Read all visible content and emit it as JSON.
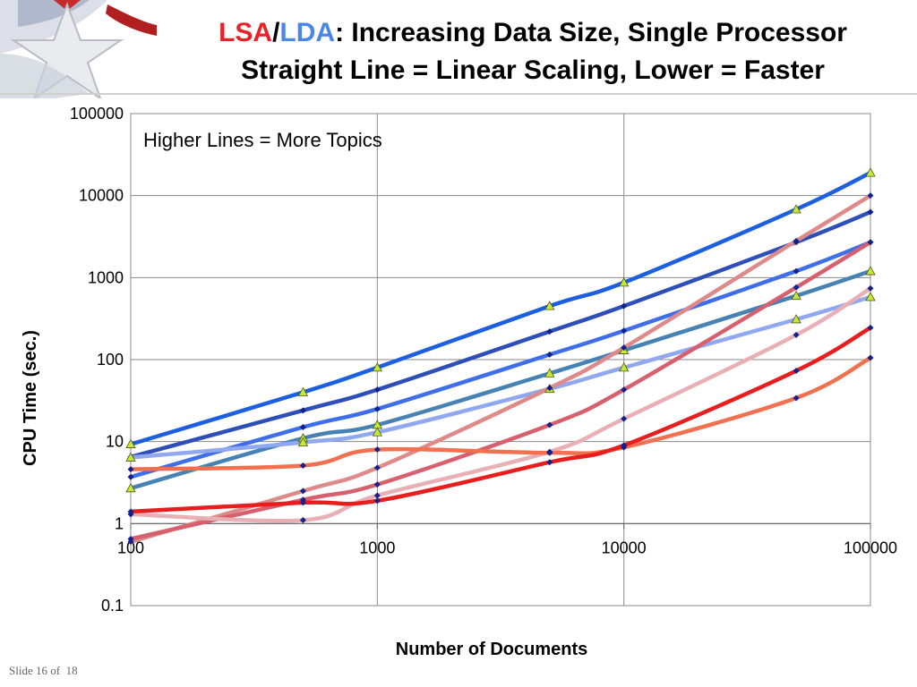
{
  "slide": {
    "title_part1": "LSA",
    "title_sep": "/",
    "title_part2": "LDA",
    "title_rest": ": Increasing Data Size, Single Processor",
    "title_line2": "Straight Line = Linear Scaling, Lower = Faster",
    "footer_slide": "Slide 16 of",
    "footer_total": "18"
  },
  "chart_data": {
    "type": "line",
    "title": "",
    "annotation": "Higher Lines = More Topics",
    "xlabel": "Number of Documents",
    "ylabel": "CPU Time (sec.)",
    "xscale": "log",
    "yscale": "log",
    "xlim": [
      100,
      100000
    ],
    "ylim": [
      0.1,
      100000
    ],
    "x_ticks": [
      "100",
      "1000",
      "10000",
      "100000"
    ],
    "y_ticks": [
      "100000",
      "10000",
      "1000",
      "100",
      "10",
      "1",
      "0.1"
    ],
    "grid": true,
    "x_values": [
      100,
      500,
      1000,
      5000,
      10000,
      50000,
      100000
    ],
    "series": [
      {
        "color": "#1c5fe0",
        "marker": "triangle",
        "values": [
          9.3,
          40,
          80,
          450,
          870,
          6800,
          19000
        ]
      },
      {
        "color": "#2f4fb8",
        "marker": "diamond",
        "values": [
          6.5,
          24,
          43,
          220,
          450,
          2700,
          6300
        ]
      },
      {
        "color": "#3f6fe8",
        "marker": "diamond",
        "values": [
          3.7,
          15,
          25,
          115,
          225,
          1200,
          2700
        ]
      },
      {
        "color": "#4682b4",
        "marker": "triangle",
        "values": [
          2.7,
          11,
          16,
          68,
          130,
          600,
          1200
        ]
      },
      {
        "color": "#90a8f0",
        "marker": "triangle",
        "values": [
          6.4,
          9.8,
          13,
          44,
          80,
          310,
          580
        ]
      },
      {
        "color": "#de8a8a",
        "marker": "diamond",
        "values": [
          0.6,
          2.5,
          4.8,
          45,
          140,
          2800,
          10000
        ]
      },
      {
        "color": "#d6606e",
        "marker": "diamond",
        "values": [
          0.65,
          1.95,
          3.0,
          16,
          43,
          760,
          2700
        ]
      },
      {
        "color": "#e8b0b4",
        "marker": "diamond",
        "values": [
          1.3,
          1.1,
          2.2,
          7.5,
          19,
          200,
          740
        ]
      },
      {
        "color": "#f07050",
        "marker": "diamond",
        "values": [
          4.6,
          5.1,
          8.0,
          7.3,
          8.5,
          34,
          105
        ]
      },
      {
        "color": "#e81e1e",
        "marker": "diamond",
        "values": [
          1.4,
          1.8,
          1.9,
          5.6,
          9.0,
          73,
          245
        ]
      }
    ]
  }
}
